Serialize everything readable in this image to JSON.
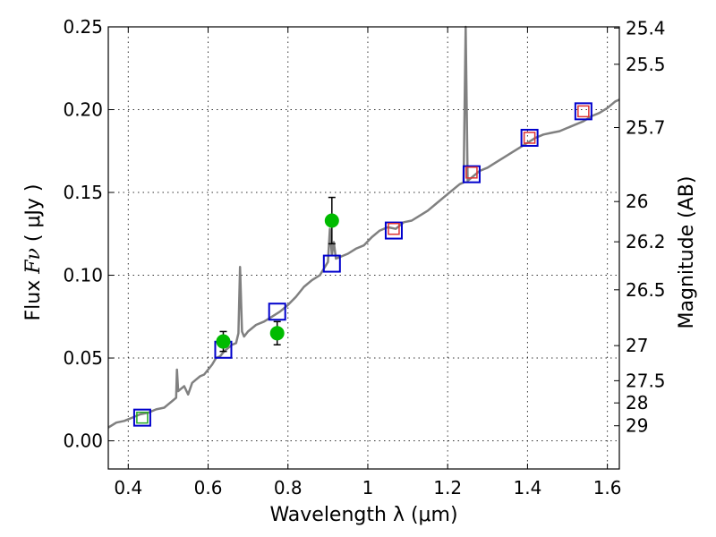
{
  "chart_data": {
    "type": "line",
    "xlabel": "Wavelength  λ (μm)",
    "ylabel_left": {
      "pre": "Flux  ",
      "math": "Fν",
      "post": "  (  μJy )"
    },
    "ylabel_right": "Magnitude (AB)",
    "xlim": [
      0.35,
      1.63
    ],
    "ylim": [
      -0.017,
      0.25
    ],
    "grid": true,
    "legend": "none",
    "x_ticks": [
      {
        "value": 0.4,
        "label": "0.4"
      },
      {
        "value": 0.6,
        "label": "0.6"
      },
      {
        "value": 0.8,
        "label": "0.8"
      },
      {
        "value": 1.0,
        "label": "1"
      },
      {
        "value": 1.2,
        "label": "1.2"
      },
      {
        "value": 1.4,
        "label": "1.4"
      },
      {
        "value": 1.6,
        "label": "1.6"
      }
    ],
    "y_ticks": [
      {
        "value": 0.0,
        "label": "0.00"
      },
      {
        "value": 0.05,
        "label": "0.05"
      },
      {
        "value": 0.1,
        "label": "0.10"
      },
      {
        "value": 0.15,
        "label": "0.15"
      },
      {
        "value": 0.2,
        "label": "0.20"
      },
      {
        "value": 0.25,
        "label": "0.25"
      }
    ],
    "magnitude_ticks": [
      {
        "flux": 0.2493,
        "label": "25.4"
      },
      {
        "flux": 0.2274,
        "label": "25.5"
      },
      {
        "flux": 0.1892,
        "label": "25.7"
      },
      {
        "flux": 0.1445,
        "label": "26"
      },
      {
        "flux": 0.1202,
        "label": "26.2"
      },
      {
        "flux": 0.0912,
        "label": "26.5"
      },
      {
        "flux": 0.0575,
        "label": "27"
      },
      {
        "flux": 0.0363,
        "label": "27.5"
      },
      {
        "flux": 0.0229,
        "label": "28"
      },
      {
        "flux": 0.0091,
        "label": "29"
      }
    ],
    "series": [
      {
        "kind": "model-spectrum",
        "color": "#808080",
        "x": [
          0.35,
          0.37,
          0.39,
          0.41,
          0.43,
          0.45,
          0.47,
          0.49,
          0.5,
          0.51,
          0.52,
          0.522,
          0.525,
          0.53,
          0.54,
          0.55,
          0.56,
          0.57,
          0.58,
          0.59,
          0.6,
          0.61,
          0.62,
          0.63,
          0.64,
          0.65,
          0.66,
          0.67,
          0.676,
          0.68,
          0.685,
          0.69,
          0.7,
          0.72,
          0.74,
          0.76,
          0.78,
          0.8,
          0.82,
          0.84,
          0.86,
          0.88,
          0.89,
          0.9,
          0.905,
          0.91,
          0.915,
          0.92,
          0.93,
          0.95,
          0.97,
          0.99,
          1.01,
          1.03,
          1.05,
          1.07,
          1.09,
          1.11,
          1.13,
          1.15,
          1.17,
          1.19,
          1.21,
          1.23,
          1.24,
          1.245,
          1.25,
          1.26,
          1.28,
          1.3,
          1.32,
          1.34,
          1.36,
          1.38,
          1.4,
          1.42,
          1.44,
          1.46,
          1.48,
          1.5,
          1.52,
          1.54,
          1.56,
          1.58,
          1.6,
          1.62,
          1.63
        ],
        "y": [
          0.008,
          0.011,
          0.012,
          0.014,
          0.016,
          0.017,
          0.019,
          0.02,
          0.022,
          0.024,
          0.026,
          0.043,
          0.03,
          0.031,
          0.033,
          0.028,
          0.035,
          0.037,
          0.039,
          0.04,
          0.043,
          0.046,
          0.05,
          0.051,
          0.054,
          0.056,
          0.058,
          0.059,
          0.065,
          0.105,
          0.066,
          0.063,
          0.066,
          0.07,
          0.072,
          0.075,
          0.078,
          0.082,
          0.087,
          0.093,
          0.097,
          0.1,
          0.104,
          0.108,
          0.128,
          0.112,
          0.12,
          0.11,
          0.111,
          0.113,
          0.116,
          0.118,
          0.123,
          0.127,
          0.129,
          0.128,
          0.132,
          0.133,
          0.136,
          0.139,
          0.143,
          0.147,
          0.151,
          0.155,
          0.156,
          0.25,
          0.157,
          0.159,
          0.163,
          0.165,
          0.168,
          0.171,
          0.174,
          0.177,
          0.18,
          0.183,
          0.185,
          0.186,
          0.187,
          0.189,
          0.191,
          0.193,
          0.196,
          0.198,
          0.201,
          0.205,
          0.206
        ]
      },
      {
        "kind": "observed",
        "marker": "circle",
        "color": "#00bb00",
        "x": [
          0.638,
          0.773,
          0.91
        ],
        "y": [
          0.06,
          0.065,
          0.133
        ],
        "yerr": [
          0.006,
          0.007,
          0.014
        ]
      },
      {
        "kind": "model-photometry",
        "marker": "square",
        "color": "#0000cc",
        "x": [
          0.435,
          0.638,
          0.773,
          0.91,
          1.065,
          1.26,
          1.405,
          1.54
        ],
        "y": [
          0.014,
          0.055,
          0.078,
          0.107,
          0.127,
          0.161,
          0.183,
          0.199
        ]
      },
      {
        "kind": "inner-square-red",
        "marker": "square",
        "color": "#dd3333",
        "x": [
          1.065,
          1.26,
          1.405,
          1.54
        ],
        "y": [
          0.128,
          0.162,
          0.183,
          0.199
        ]
      },
      {
        "kind": "inner-square-green",
        "marker": "square",
        "color": "#22aa22",
        "x": [
          0.435
        ],
        "y": [
          0.014
        ]
      }
    ]
  }
}
